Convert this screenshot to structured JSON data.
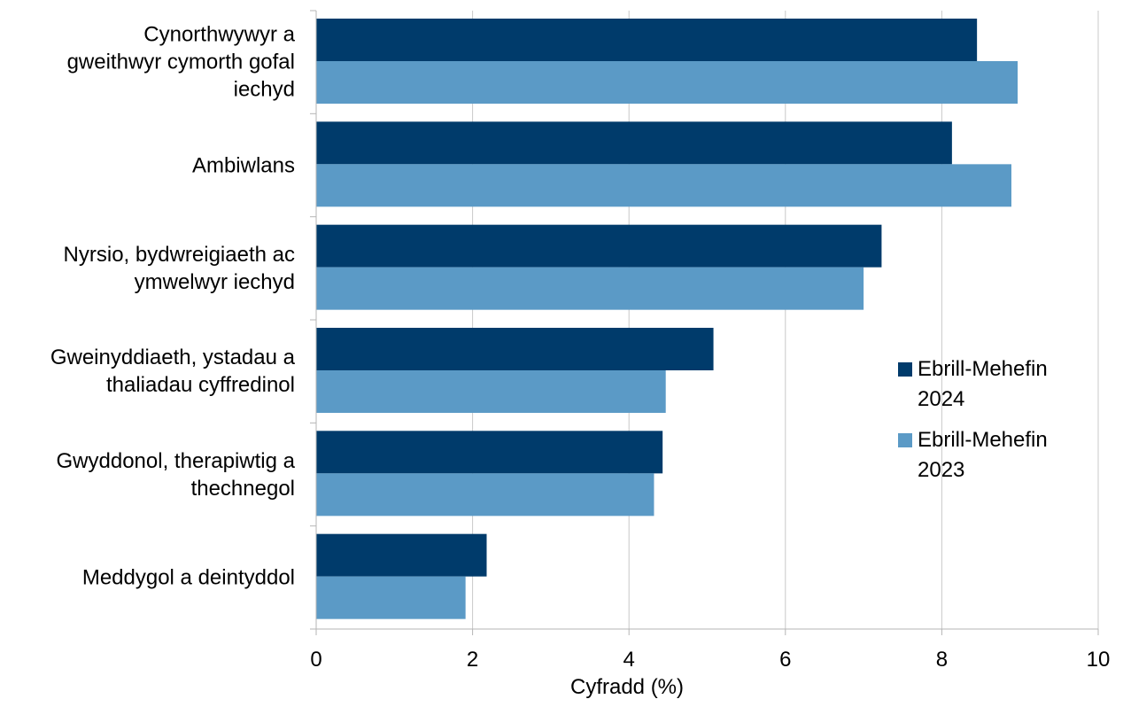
{
  "chart_data": {
    "type": "bar",
    "orientation": "horizontal",
    "categories": [
      "Cynorthwywyr a gweithwyr cymorth gofal iechyd",
      "Ambiwlans",
      "Nyrsio, bydwreigiaeth ac ymwelwyr iechyd",
      "Gweinyddiaeth, ystadau a thaliadau cyffredinol",
      "Gwyddonol, therapiwtig a thechnegol",
      "Meddygol a deintyddol"
    ],
    "category_lines": [
      [
        "Cynorthwywyr a",
        "gweithwyr cymorth gofal",
        "iechyd"
      ],
      [
        "Ambiwlans"
      ],
      [
        "Nyrsio, bydwreigiaeth ac",
        "ymwelwyr iechyd"
      ],
      [
        "Gweinyddiaeth, ystadau a",
        "thaliadau cyffredinol"
      ],
      [
        "Gwyddonol, therapiwtig a",
        "thechnegol"
      ],
      [
        "Meddygol a deintyddol"
      ]
    ],
    "series": [
      {
        "name": "Ebrill-Mehefin 2024",
        "color": "#003b6b",
        "values": [
          8.45,
          8.13,
          7.23,
          5.08,
          4.43,
          2.18
        ]
      },
      {
        "name": "Ebrill-Mehefin 2023",
        "color": "#5b9ac6",
        "values": [
          8.97,
          8.89,
          7.0,
          4.47,
          4.32,
          1.91
        ]
      }
    ],
    "xlabel": "Cyfradd (%)",
    "xlim": [
      0,
      10
    ],
    "xticks": [
      0,
      2,
      4,
      6,
      8,
      10
    ],
    "xtick_labels": [
      "0",
      "2",
      "4",
      "6",
      "8",
      "10"
    ],
    "grid": true,
    "legend_position": "right"
  }
}
